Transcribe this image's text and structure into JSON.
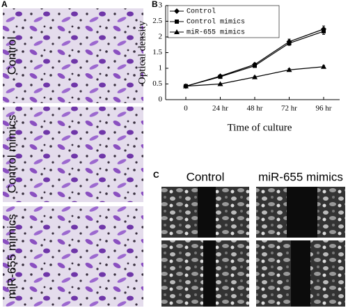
{
  "panel_a": {
    "label": "A",
    "rows": [
      "Control",
      "Control mimics",
      "miR-655 mimics"
    ]
  },
  "panel_b": {
    "label": "B"
  },
  "panel_c": {
    "label": "C",
    "columns": [
      "Control",
      "miR-655 mimics"
    ]
  },
  "chart_data": {
    "type": "line",
    "x_label": "Time of culture",
    "y_label": "Optical density",
    "categories": [
      "0",
      "24 hr",
      "48 hr",
      "72 hr",
      "96 hr"
    ],
    "ylim": [
      0,
      3
    ],
    "yticks": [
      0,
      0.5,
      1,
      1.5,
      2,
      2.5,
      3
    ],
    "legend": "top-left",
    "series": [
      {
        "name": "Control",
        "color": "#000000",
        "marker": "diamond",
        "values": [
          0.43,
          0.75,
          1.12,
          1.85,
          2.25
        ],
        "errors": [
          0.02,
          0.03,
          0.05,
          0.08,
          0.1
        ]
      },
      {
        "name": "Control mimics",
        "color": "#000000",
        "marker": "square",
        "values": [
          0.43,
          0.73,
          1.08,
          1.8,
          2.18
        ],
        "errors": [
          0.02,
          0.03,
          0.05,
          0.07,
          0.1
        ]
      },
      {
        "name": "miR-655 mimics",
        "color": "#000000",
        "marker": "triangle",
        "values": [
          0.43,
          0.5,
          0.72,
          0.95,
          1.05
        ],
        "errors": [
          0.02,
          0.02,
          0.03,
          0.04,
          0.04
        ]
      }
    ]
  }
}
